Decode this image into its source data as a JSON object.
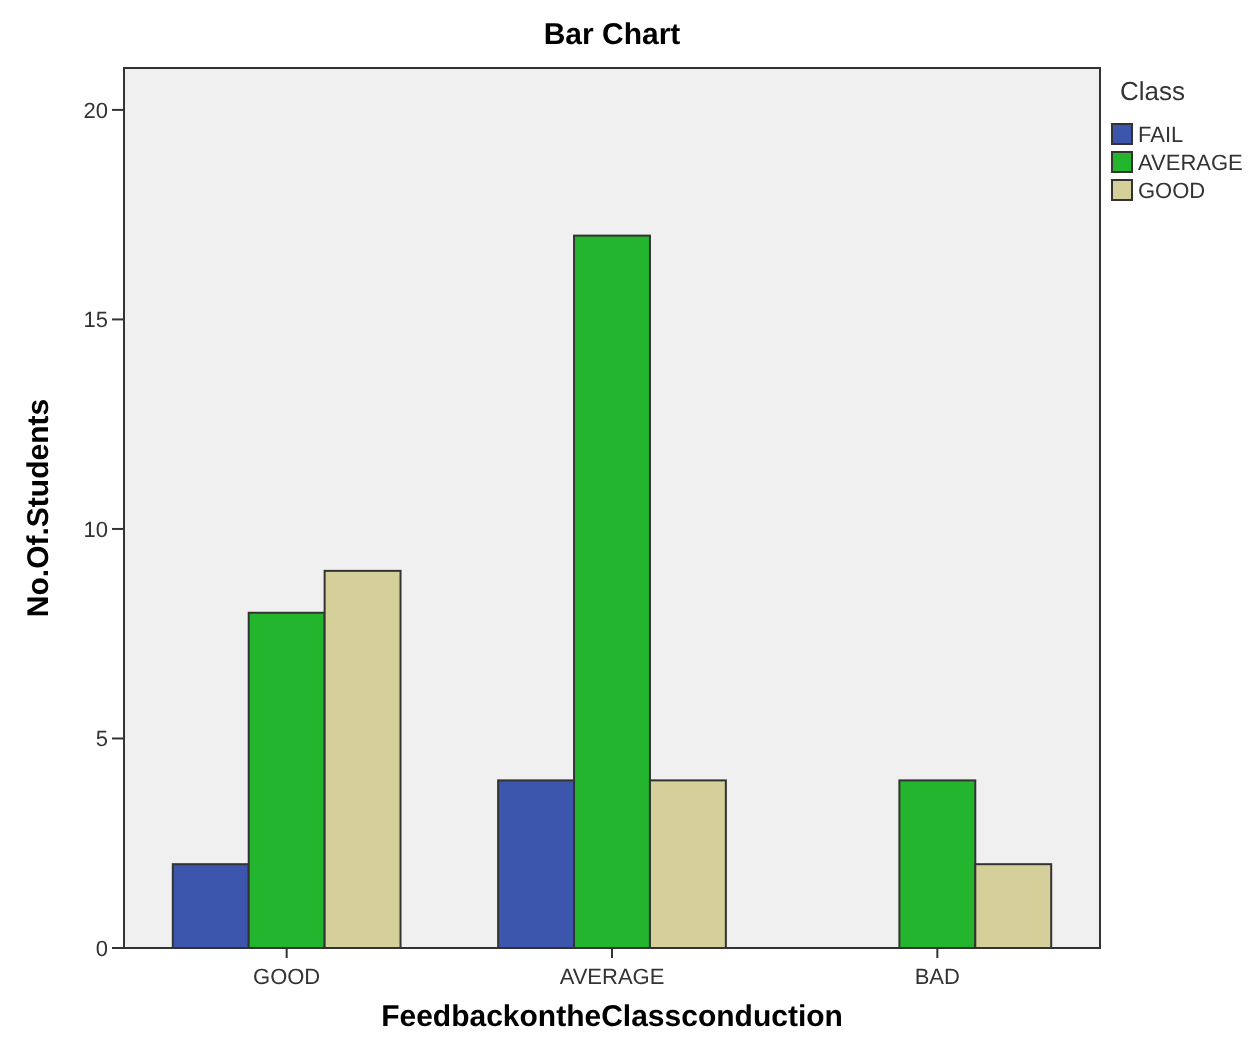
{
  "chart_data": {
    "type": "bar",
    "title": "Bar Chart",
    "xlabel": "FeedbackontheClassconduction",
    "ylabel": "No.Of.Students",
    "legend_title": "Class",
    "categories": [
      "GOOD",
      "AVERAGE",
      "BAD"
    ],
    "series": [
      {
        "name": "FAIL",
        "color": "#3d56ad",
        "values": [
          2,
          4,
          null
        ]
      },
      {
        "name": "AVERAGE",
        "color": "#23b52d",
        "values": [
          8,
          17,
          4
        ]
      },
      {
        "name": "GOOD",
        "color": "#d5cf99",
        "values": [
          9,
          4,
          2
        ]
      }
    ],
    "ylim": [
      0,
      21
    ],
    "yticks": [
      0,
      5,
      10,
      15,
      20
    ],
    "grid": false,
    "legend": "right"
  }
}
